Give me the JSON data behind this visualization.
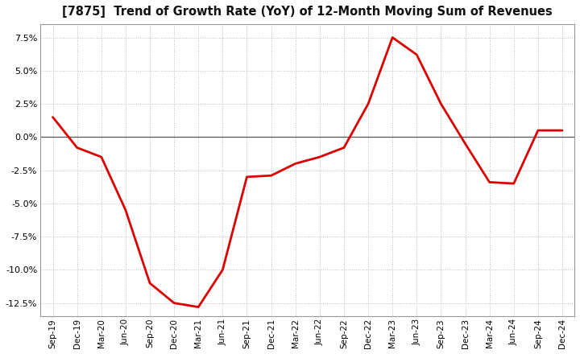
{
  "title": "[7875]  Trend of Growth Rate (YoY) of 12-Month Moving Sum of Revenues",
  "line_color": "#dd0000",
  "line_width": 2.0,
  "background_color": "#ffffff",
  "plot_bg_color": "#ffffff",
  "grid_color": "#bbbbbb",
  "zero_line_color": "#555555",
  "ylim": [
    -0.135,
    0.085
  ],
  "yticks": [
    -0.125,
    -0.1,
    -0.075,
    -0.05,
    -0.025,
    0.0,
    0.025,
    0.05,
    0.075
  ],
  "x_labels": [
    "Sep-19",
    "Dec-19",
    "Mar-20",
    "Jun-20",
    "Sep-20",
    "Dec-20",
    "Mar-21",
    "Jun-21",
    "Sep-21",
    "Dec-21",
    "Mar-22",
    "Jun-22",
    "Sep-22",
    "Dec-22",
    "Mar-23",
    "Jun-23",
    "Sep-23",
    "Dec-23",
    "Mar-24",
    "Jun-24",
    "Sep-24",
    "Dec-24"
  ],
  "y_values": [
    0.015,
    -0.008,
    -0.015,
    -0.055,
    -0.11,
    -0.125,
    -0.128,
    -0.1,
    -0.03,
    -0.029,
    -0.02,
    -0.015,
    -0.008,
    0.025,
    0.075,
    0.062,
    0.025,
    -0.005,
    -0.034,
    -0.035,
    0.005,
    0.005
  ]
}
